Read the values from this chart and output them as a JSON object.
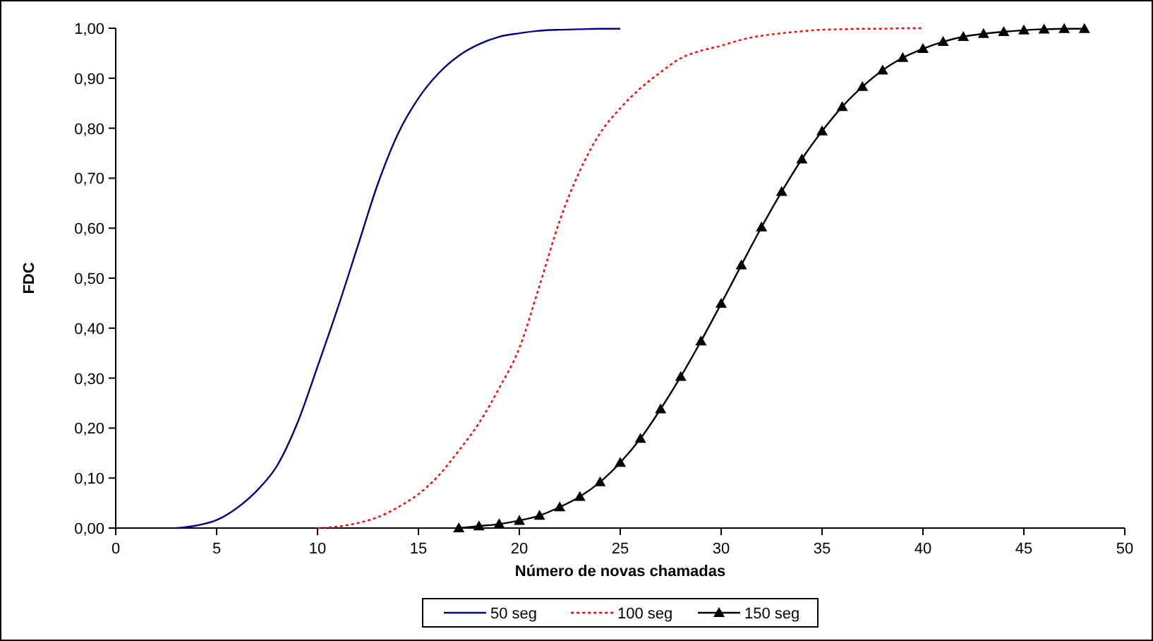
{
  "chart_data": {
    "type": "line",
    "xlabel": "Número de novas chamadas",
    "ylabel": "FDC",
    "xlim": [
      0,
      50
    ],
    "xticks": [
      0,
      5,
      10,
      15,
      20,
      25,
      30,
      35,
      40,
      45,
      50
    ],
    "ylim": [
      0,
      1
    ],
    "yticks": [
      {
        "value": 0,
        "label": "0,00"
      },
      {
        "value": 0.1,
        "label": "0,10"
      },
      {
        "value": 0.2,
        "label": "0,20"
      },
      {
        "value": 0.3,
        "label": "0,30"
      },
      {
        "value": 0.4,
        "label": "0,40"
      },
      {
        "value": 0.5,
        "label": "0,50"
      },
      {
        "value": 0.6,
        "label": "0,60"
      },
      {
        "value": 0.7,
        "label": "0,70"
      },
      {
        "value": 0.8,
        "label": "0,80"
      },
      {
        "value": 0.9,
        "label": "0,90"
      },
      {
        "value": 1,
        "label": "1,00"
      }
    ],
    "grid": false,
    "legend": "bottom",
    "series": [
      {
        "name": "50 seg",
        "color": "#000080",
        "line_style": "solid",
        "marker": "none",
        "x": [
          3,
          4,
          5,
          6,
          7,
          8,
          9,
          10,
          11,
          12,
          13,
          14,
          15,
          16,
          17,
          18,
          19,
          20,
          21,
          22,
          23,
          24,
          25
        ],
        "values": [
          0,
          0.005,
          0.016,
          0.04,
          0.075,
          0.125,
          0.21,
          0.323,
          0.44,
          0.565,
          0.69,
          0.79,
          0.86,
          0.91,
          0.945,
          0.968,
          0.983,
          0.99,
          0.995,
          0.997,
          0.998,
          0.999,
          0.999
        ]
      },
      {
        "name": "100 seg",
        "color": "#ff0000",
        "line_style": "dotted",
        "marker": "none",
        "x": [
          10,
          11,
          12,
          13,
          14,
          15,
          16,
          17,
          18,
          19,
          20,
          21,
          22,
          23,
          24,
          25,
          26,
          27,
          28,
          29,
          30,
          31,
          32,
          33,
          34,
          35,
          36,
          37,
          38,
          39,
          40
        ],
        "values": [
          0,
          0.003,
          0.01,
          0.022,
          0.042,
          0.068,
          0.105,
          0.155,
          0.21,
          0.28,
          0.36,
          0.485,
          0.615,
          0.715,
          0.79,
          0.84,
          0.88,
          0.912,
          0.94,
          0.955,
          0.965,
          0.977,
          0.985,
          0.99,
          0.994,
          0.997,
          0.998,
          0.999,
          0.999,
          1,
          1
        ]
      },
      {
        "name": "150 seg",
        "color": "#000000",
        "line_style": "solid",
        "marker": "triangle",
        "x": [
          17,
          18,
          19,
          20,
          21,
          22,
          23,
          24,
          25,
          26,
          27,
          28,
          29,
          30,
          31,
          32,
          33,
          34,
          35,
          36,
          37,
          38,
          39,
          40,
          41,
          42,
          43,
          44,
          45,
          46,
          47,
          48
        ],
        "values": [
          0,
          0.004,
          0.008,
          0.015,
          0.025,
          0.042,
          0.063,
          0.092,
          0.131,
          0.179,
          0.238,
          0.303,
          0.374,
          0.449,
          0.526,
          0.602,
          0.673,
          0.738,
          0.794,
          0.843,
          0.883,
          0.916,
          0.941,
          0.959,
          0.973,
          0.983,
          0.989,
          0.993,
          0.996,
          0.998,
          0.999,
          0.999
        ]
      }
    ]
  }
}
